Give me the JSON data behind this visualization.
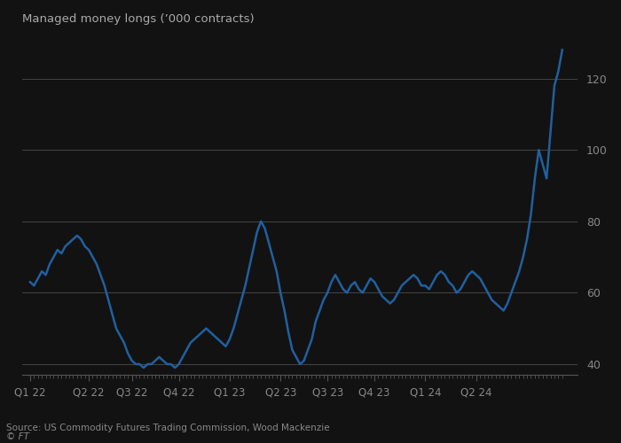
{
  "title": "Managed money longs (’000 contracts)",
  "source": "Source: US Commodity Futures Trading Commission, Wood Mackenzie",
  "ft_label": "© FT",
  "line_color": "#2060a0",
  "background_color": "#121212",
  "plot_bg_color": "#121212",
  "title_color": "#aaaaaa",
  "tick_color": "#888888",
  "grid_color": "#444444",
  "spine_color": "#555555",
  "source_color": "#888888",
  "ylim": [
    37,
    133
  ],
  "yticks": [
    40,
    60,
    80,
    100,
    120
  ],
  "quarter_labels": [
    "Q1 22",
    "Q2 22",
    "Q3 22",
    "Q4 22",
    "Q1 23",
    "Q2 23",
    "Q3 23",
    "Q4 23",
    "Q1 24",
    "Q2 24"
  ],
  "values": [
    63,
    62,
    64,
    66,
    65,
    68,
    70,
    72,
    71,
    73,
    74,
    75,
    76,
    75,
    73,
    72,
    70,
    68,
    65,
    62,
    58,
    54,
    50,
    48,
    46,
    43,
    41,
    40,
    40,
    39,
    40,
    40,
    41,
    42,
    41,
    40,
    40,
    39,
    40,
    42,
    44,
    46,
    47,
    48,
    49,
    50,
    49,
    48,
    47,
    46,
    45,
    47,
    50,
    54,
    58,
    62,
    67,
    72,
    77,
    80,
    78,
    74,
    70,
    66,
    60,
    55,
    49,
    44,
    42,
    40,
    41,
    44,
    47,
    52,
    55,
    58,
    60,
    63,
    65,
    63,
    61,
    60,
    62,
    63,
    61,
    60,
    62,
    64,
    63,
    61,
    59,
    58,
    57,
    58,
    60,
    62,
    63,
    64,
    65,
    64,
    62,
    62,
    61,
    63,
    65,
    66,
    65,
    63,
    62,
    60,
    61,
    63,
    65,
    66,
    65,
    64,
    62,
    60,
    58,
    57,
    56,
    55,
    57,
    60,
    63,
    66,
    70,
    75,
    82,
    92,
    100,
    96,
    92,
    105,
    118,
    122,
    128
  ]
}
